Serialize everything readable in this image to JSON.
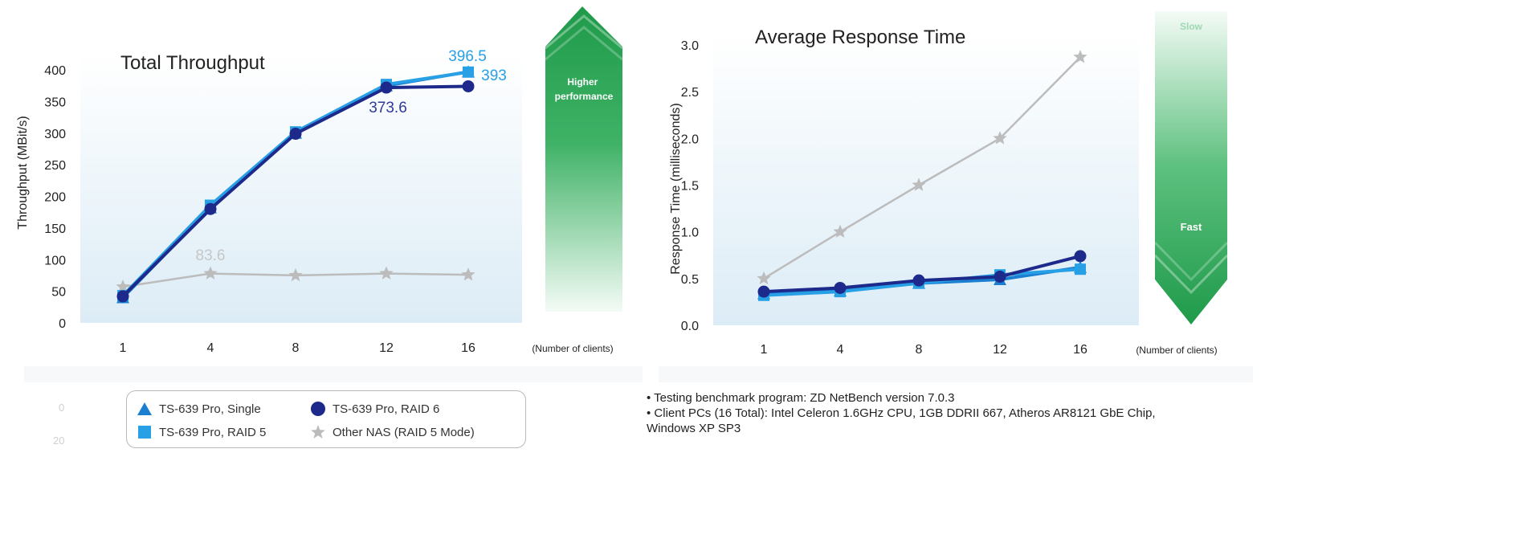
{
  "chart_data": [
    {
      "type": "line",
      "title": "Total Throughput",
      "ylabel": "Throughput (MBit/s)",
      "xlabel": "(Number of clients)",
      "categories": [
        "1",
        "4",
        "8",
        "12",
        "16"
      ],
      "ylim": [
        0,
        400
      ],
      "yticks": [
        0,
        50,
        100,
        150,
        200,
        250,
        300,
        350,
        400
      ],
      "grid": false,
      "series": [
        {
          "name": "TS-639 Pro, Single",
          "values": [
            40,
            182,
            300,
            375,
            397
          ],
          "color": "#1a7fd0",
          "marker": "triangle"
        },
        {
          "name": "TS-639 Pro, RAID 6",
          "values": [
            42,
            180,
            299,
            372,
            374
          ],
          "color": "#1d2a8c",
          "marker": "circle"
        },
        {
          "name": "TS-639 Pro, RAID 5",
          "values": [
            43,
            186,
            302,
            377,
            396.5
          ],
          "color": "#27a0e6",
          "marker": "square"
        },
        {
          "name": "Other NAS (RAID 5 Mode)",
          "values": [
            57,
            78,
            75,
            78,
            76
          ],
          "color": "#bcbcbc",
          "marker": "star"
        }
      ],
      "data_labels": [
        {
          "text": "396.5",
          "color": "#27a0e6"
        },
        {
          "text": "393",
          "color": "#27a0e6"
        },
        {
          "text": "373.6",
          "color": "#2e3a99"
        },
        {
          "text": "83.6",
          "color": "#c6c6c6"
        }
      ],
      "arrow_label": "Higher performance"
    },
    {
      "type": "line",
      "title": "Average Response Time",
      "ylabel": "Response Time (milliseconds)",
      "xlabel": "(Number of clients)",
      "categories": [
        "1",
        "4",
        "8",
        "12",
        "16"
      ],
      "ylim": [
        0,
        3.0
      ],
      "yticks": [
        "0.0",
        "0.5",
        "1.0",
        "1.5",
        "2.0",
        "2.5",
        "3.0"
      ],
      "grid": false,
      "series": [
        {
          "name": "TS-639 Pro, Single",
          "values": [
            0.34,
            0.37,
            0.45,
            0.49,
            0.62
          ],
          "color": "#1a7fd0",
          "marker": "triangle"
        },
        {
          "name": "TS-639 Pro, RAID 6",
          "values": [
            0.36,
            0.4,
            0.48,
            0.52,
            0.74
          ],
          "color": "#1d2a8c",
          "marker": "circle"
        },
        {
          "name": "TS-639 Pro, RAID 5",
          "values": [
            0.32,
            0.36,
            0.45,
            0.54,
            0.6
          ],
          "color": "#27a0e6",
          "marker": "square"
        },
        {
          "name": "Other NAS (RAID 5 Mode)",
          "values": [
            0.5,
            1.0,
            1.5,
            2.0,
            2.87
          ],
          "color": "#bcbcbc",
          "marker": "star"
        }
      ],
      "arrow_top_label": "Slow",
      "arrow_bottom_label": "Fast"
    }
  ],
  "legend": [
    {
      "label": "TS-639 Pro, Single",
      "marker": "triangle",
      "color": "#1a7fd0"
    },
    {
      "label": "TS-639 Pro, RAID 6",
      "marker": "circle",
      "color": "#1d2a8c"
    },
    {
      "label": "TS-639 Pro, RAID 5",
      "marker": "square",
      "color": "#27a0e6"
    },
    {
      "label": "Other NAS (RAID 5 Mode)",
      "marker": "star",
      "color": "#bcbcbc"
    }
  ],
  "notes": [
    "• Testing benchmark program: ZD NetBench version 7.0.3",
    "• Client PCs (16 Total): Intel Celeron 1.6GHz CPU, 1GB DDRII 667, Atheros AR8121 GbE Chip,",
    "  Windows XP SP3"
  ],
  "ghost_ticks": [
    "0",
    "20"
  ]
}
